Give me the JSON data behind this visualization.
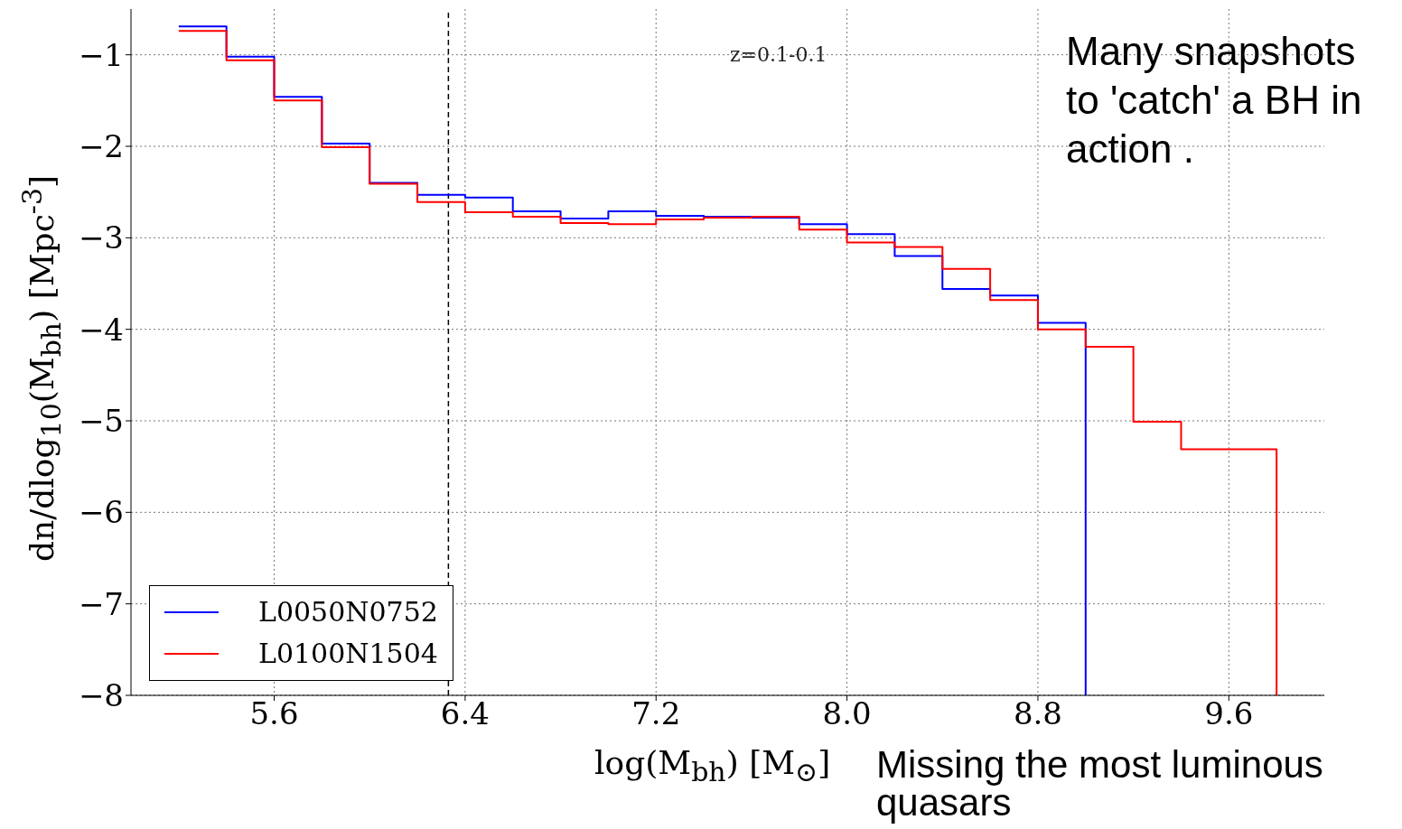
{
  "chart_data": {
    "type": "step",
    "xlabel": "log(M$_{bh}$) [M$_{⊙}$]",
    "ylabel": "dn/dlog$_{10}$(M$_{bh}$) [Mpc$^{-3}$]",
    "xlim": [
      5.0,
      10.0
    ],
    "ylim": [
      -8,
      -0.5
    ],
    "xticks": [
      5.6,
      6.4,
      7.2,
      {
        "value": 8,
        "label": "8.0"
      },
      8.8,
      9.6
    ],
    "yticks": [
      -1,
      -2,
      -3,
      -4,
      -5,
      -6,
      -7,
      -8
    ],
    "grid": true,
    "legend": "bottom left",
    "line_style": "solid",
    "marker": "none",
    "series": [
      {
        "name": "L0050N0752",
        "color": "#0000ff",
        "x": [
          5.2,
          5.4,
          5.6,
          5.8,
          6.0,
          6.2,
          6.4,
          6.6,
          6.8,
          7.0,
          7.2,
          7.4,
          7.6,
          7.8,
          8.0,
          8.2,
          8.4,
          8.6,
          8.8,
          9.0
        ],
        "values": [
          -0.69,
          -1.02,
          -1.46,
          -1.97,
          -2.4,
          -2.53,
          -2.56,
          -2.71,
          -2.79,
          -2.71,
          -2.76,
          -2.77,
          -2.78,
          -2.85,
          -2.96,
          -3.2,
          -3.56,
          -3.63,
          -3.93,
          -8
        ]
      },
      {
        "name": "L0100N1504",
        "color": "#ff0000",
        "x": [
          5.2,
          5.4,
          5.6,
          5.8,
          6.0,
          6.2,
          6.4,
          6.6,
          6.8,
          7.0,
          7.2,
          7.4,
          7.6,
          7.8,
          8.0,
          8.2,
          8.4,
          8.6,
          8.8,
          9.0,
          9.2,
          9.4,
          9.6,
          9.8
        ],
        "values": [
          -0.74,
          -1.06,
          -1.5,
          -2.01,
          -2.41,
          -2.61,
          -2.72,
          -2.77,
          -2.84,
          -2.85,
          -2.8,
          -2.78,
          -2.77,
          -2.91,
          -3.05,
          -3.1,
          -3.34,
          -3.68,
          -4.0,
          -4.19,
          -5.01,
          -5.31,
          -5.31,
          -8
        ]
      }
    ],
    "ref_lines": [
      {
        "axis": "x",
        "value": 6.33,
        "color": "#000000",
        "line_style": "dashed"
      }
    ],
    "annotations": [
      "z=0.1-0.1",
      "Many snapshots to 'catch' a BH in action .",
      "Missing the most luminous quasars"
    ]
  }
}
